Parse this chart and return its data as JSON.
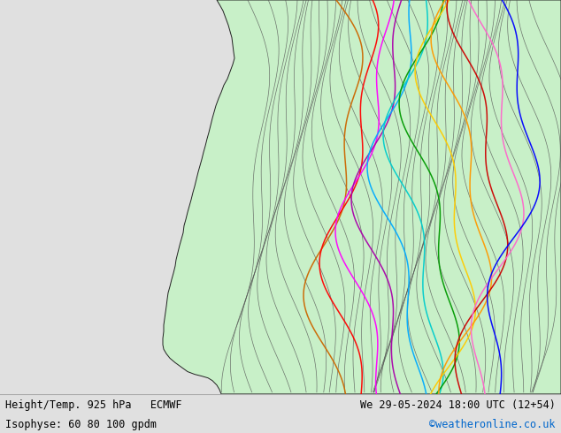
{
  "title_left_line1": "Height/Temp. 925 hPa   ECMWF",
  "title_left_line2": "Isophyse: 60 80 100 gpdm",
  "title_right_line1": "We 29-05-2024 18:00 UTC (12+54)",
  "title_right_line2": "©weatheronline.co.uk",
  "title_right_line2_color": "#0066cc",
  "background_color": "#e0e0e0",
  "sea_color": "#e0e0e0",
  "land_color": "#c8f0c8",
  "border_color": "#222222",
  "text_color": "#000000",
  "footer_bg": "#d8d8d8",
  "figsize": [
    6.34,
    4.9
  ],
  "dpi": 100,
  "extent": [
    0.0,
    35.0,
    50.0,
    72.0
  ],
  "contour_color": "#666666",
  "contour_colors": [
    "#cc6600",
    "#ff0000",
    "#ff00ff",
    "#aa00aa",
    "#00aaff",
    "#00cccc",
    "#009900",
    "#ffcc00",
    "#ff9900",
    "#cc0000",
    "#ff66cc",
    "#0000ff"
  ],
  "label_color": "#333333"
}
